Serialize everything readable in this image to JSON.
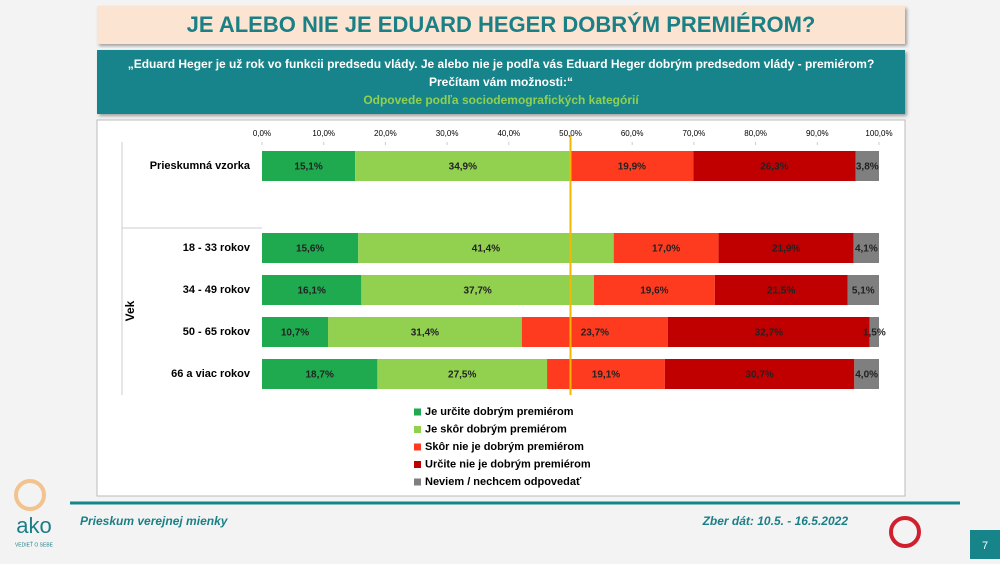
{
  "page": {
    "logo": "ako",
    "logo_tagline": "VEDIEŤ O SEBE",
    "footer_left": "Prieskum verejnej mienky",
    "footer_right": "Zber dát: 10.5. - 16.5.2022",
    "page_number": "7"
  },
  "chart_data": {
    "type": "stacked-bar-horizontal",
    "title": "JE ALEBO NIE JE EDUARD HEGER DOBRÝM PREMIÉROM?",
    "question": [
      "„Eduard Heger je už rok vo funkcii predsedu vlády. Je alebo nie je podľa vás Eduard Heger dobrým predsedom vlády - premiérom?",
      "Prečítam vám možnosti:“"
    ],
    "subtitle": "Odpovede podľa sociodemografických kategórií",
    "group_label": "Vek",
    "categories": [
      "Prieskumná vzorka",
      "18 - 33 rokov",
      "34 - 49 rokov",
      "50 - 65 rokov",
      "66 a viac rokov"
    ],
    "series": [
      {
        "name": "Je určite dobrým premiérom",
        "color": "#1faa50",
        "values": [
          15.1,
          15.6,
          16.1,
          10.7,
          18.7
        ],
        "value_labels": [
          "15,1%",
          "15,6%",
          "16,1%",
          "10,7%",
          "18,7%"
        ]
      },
      {
        "name": "Je skôr dobrým premiérom",
        "color": "#92d050",
        "values": [
          34.9,
          41.4,
          37.7,
          31.4,
          27.5
        ],
        "value_labels": [
          "34,9%",
          "41,4%",
          "37,7%",
          "31,4%",
          "27,5%"
        ]
      },
      {
        "name": "Skôr nie je dobrým premiérom",
        "color": "#ff3b1f",
        "values": [
          19.9,
          17.0,
          19.6,
          23.7,
          19.1
        ],
        "value_labels": [
          "19,9%",
          "17,0%",
          "19,6%",
          "23,7%",
          "19,1%"
        ]
      },
      {
        "name": "Určite nie je dobrým premiérom",
        "color": "#c00000",
        "values": [
          26.3,
          21.9,
          21.5,
          32.7,
          30.7
        ],
        "value_labels": [
          "26,3%",
          "21,9%",
          "21,5%",
          "32,7%",
          "30,7%"
        ]
      },
      {
        "name": "Neviem / nechcem odpovedať",
        "color": "#7f7f7f",
        "values": [
          3.8,
          4.1,
          5.1,
          1.5,
          4.0
        ],
        "value_labels": [
          "3,8%",
          "4,1%",
          "5,1%",
          "1,5%",
          "4,0%"
        ]
      }
    ],
    "xlim": [
      0,
      100
    ],
    "xticks": [
      {
        "value": 0,
        "label": "0,0%"
      },
      {
        "value": 10,
        "label": "10,0%"
      },
      {
        "value": 20,
        "label": "20,0%"
      },
      {
        "value": 30,
        "label": "30,0%"
      },
      {
        "value": 40,
        "label": "40,0%"
      },
      {
        "value": 50,
        "label": "50,0%"
      },
      {
        "value": 60,
        "label": "60,0%"
      },
      {
        "value": 70,
        "label": "70,0%"
      },
      {
        "value": 80,
        "label": "80,0%"
      },
      {
        "value": 90,
        "label": "90,0%"
      },
      {
        "value": 100,
        "label": "100,0%"
      }
    ],
    "reference_line": 50,
    "reference_color": "#f2b705"
  }
}
